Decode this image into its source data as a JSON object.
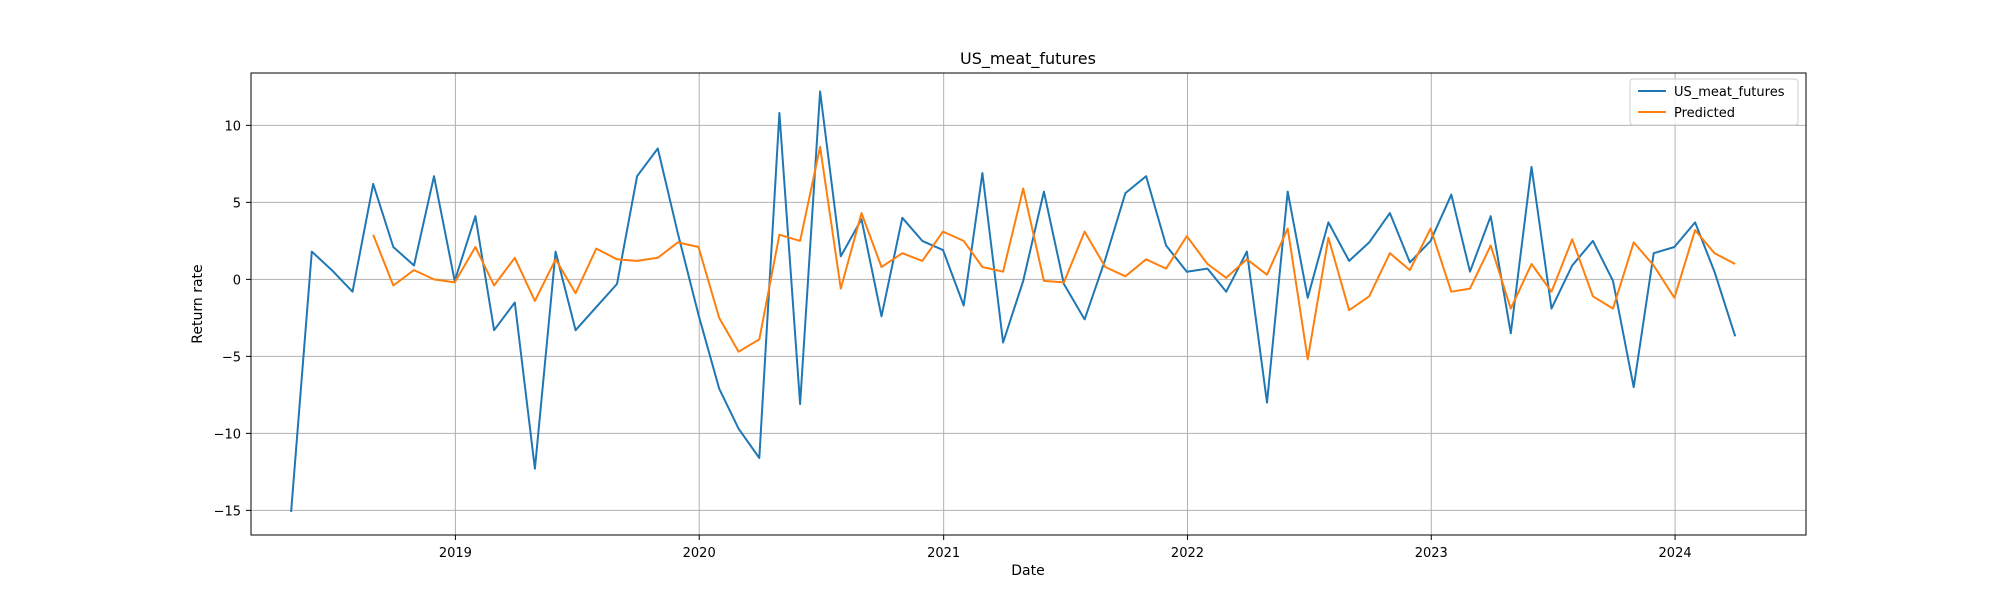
{
  "chart_data": {
    "type": "line",
    "title": "US_meat_futures",
    "xlabel": "Date",
    "ylabel": "Return rate",
    "xlim": [
      "2018-03-01",
      "2024-07-15"
    ],
    "ylim": [
      -16.6,
      13.4
    ],
    "yticks": [
      -15,
      -10,
      -5,
      0,
      5,
      10
    ],
    "ytick_labels": [
      "−15",
      "−10",
      "−5",
      "0",
      "5",
      "10"
    ],
    "xticks": [
      "2019-01-01",
      "2020-01-01",
      "2021-01-01",
      "2022-01-01",
      "2023-01-01",
      "2024-01-01"
    ],
    "xtick_labels": [
      "2019",
      "2020",
      "2021",
      "2022",
      "2023",
      "2024"
    ],
    "grid": true,
    "legend_position": "top-right",
    "series": [
      {
        "name": "US_meat_futures",
        "color": "#1f77b4",
        "points": [
          [
            "2018-04-30",
            -15.1
          ],
          [
            "2018-05-31",
            1.8
          ],
          [
            "2018-06-30",
            0.6
          ],
          [
            "2018-07-31",
            -0.8
          ],
          [
            "2018-08-31",
            6.2
          ],
          [
            "2018-09-30",
            2.1
          ],
          [
            "2018-10-31",
            0.9
          ],
          [
            "2018-11-30",
            6.7
          ],
          [
            "2018-12-31",
            -0.1
          ],
          [
            "2019-01-31",
            4.1
          ],
          [
            "2019-02-28",
            -3.3
          ],
          [
            "2019-03-31",
            -1.5
          ],
          [
            "2019-04-30",
            -12.3
          ],
          [
            "2019-05-31",
            1.8
          ],
          [
            "2019-06-30",
            -3.3
          ],
          [
            "2019-07-31",
            -1.8
          ],
          [
            "2019-08-31",
            -0.3
          ],
          [
            "2019-09-30",
            6.7
          ],
          [
            "2019-10-31",
            8.5
          ],
          [
            "2019-11-30",
            3.0
          ],
          [
            "2019-12-31",
            -2.3
          ],
          [
            "2020-01-31",
            -7.1
          ],
          [
            "2020-02-29",
            -9.7
          ],
          [
            "2020-03-31",
            -11.6
          ],
          [
            "2020-04-30",
            10.8
          ],
          [
            "2020-05-31",
            -8.1
          ],
          [
            "2020-06-30",
            12.2
          ],
          [
            "2020-07-31",
            1.5
          ],
          [
            "2020-08-31",
            3.9
          ],
          [
            "2020-09-30",
            -2.4
          ],
          [
            "2020-10-31",
            4.0
          ],
          [
            "2020-11-30",
            2.5
          ],
          [
            "2020-12-31",
            1.9
          ],
          [
            "2021-01-31",
            -1.7
          ],
          [
            "2021-02-28",
            6.9
          ],
          [
            "2021-03-31",
            -4.1
          ],
          [
            "2021-04-30",
            -0.1
          ],
          [
            "2021-05-31",
            5.7
          ],
          [
            "2021-06-30",
            -0.3
          ],
          [
            "2021-07-31",
            -2.6
          ],
          [
            "2021-08-31",
            1.3
          ],
          [
            "2021-09-30",
            5.6
          ],
          [
            "2021-10-31",
            6.7
          ],
          [
            "2021-11-30",
            2.2
          ],
          [
            "2021-12-31",
            0.5
          ],
          [
            "2022-01-31",
            0.7
          ],
          [
            "2022-02-28",
            -0.8
          ],
          [
            "2022-03-31",
            1.8
          ],
          [
            "2022-04-30",
            -8.0
          ],
          [
            "2022-05-31",
            5.7
          ],
          [
            "2022-06-30",
            -1.2
          ],
          [
            "2022-07-31",
            3.7
          ],
          [
            "2022-08-31",
            1.2
          ],
          [
            "2022-09-30",
            2.4
          ],
          [
            "2022-10-31",
            4.3
          ],
          [
            "2022-11-30",
            1.1
          ],
          [
            "2022-12-31",
            2.5
          ],
          [
            "2023-01-31",
            5.5
          ],
          [
            "2023-02-28",
            0.5
          ],
          [
            "2023-03-31",
            4.1
          ],
          [
            "2023-04-30",
            -3.5
          ],
          [
            "2023-05-31",
            7.3
          ],
          [
            "2023-06-30",
            -1.9
          ],
          [
            "2023-07-31",
            0.9
          ],
          [
            "2023-08-31",
            2.5
          ],
          [
            "2023-09-30",
            -0.1
          ],
          [
            "2023-10-31",
            -7.0
          ],
          [
            "2023-11-30",
            1.7
          ],
          [
            "2023-12-31",
            2.1
          ],
          [
            "2024-01-31",
            3.7
          ],
          [
            "2024-02-29",
            0.5
          ],
          [
            "2024-03-31",
            -3.7
          ]
        ]
      },
      {
        "name": "Predicted",
        "color": "#ff7f0e",
        "points": [
          [
            "2018-08-31",
            2.9
          ],
          [
            "2018-09-30",
            -0.4
          ],
          [
            "2018-10-31",
            0.6
          ],
          [
            "2018-11-30",
            0.0
          ],
          [
            "2018-12-31",
            -0.2
          ],
          [
            "2019-01-31",
            2.1
          ],
          [
            "2019-02-28",
            -0.4
          ],
          [
            "2019-03-31",
            1.4
          ],
          [
            "2019-04-30",
            -1.4
          ],
          [
            "2019-05-31",
            1.3
          ],
          [
            "2019-06-30",
            -0.9
          ],
          [
            "2019-07-31",
            2.0
          ],
          [
            "2019-08-31",
            1.3
          ],
          [
            "2019-09-30",
            1.2
          ],
          [
            "2019-10-31",
            1.4
          ],
          [
            "2019-11-30",
            2.4
          ],
          [
            "2019-12-31",
            2.1
          ],
          [
            "2020-01-31",
            -2.5
          ],
          [
            "2020-02-29",
            -4.7
          ],
          [
            "2020-03-31",
            -3.9
          ],
          [
            "2020-04-30",
            2.9
          ],
          [
            "2020-05-31",
            2.5
          ],
          [
            "2020-06-30",
            8.6
          ],
          [
            "2020-07-31",
            -0.6
          ],
          [
            "2020-08-31",
            4.3
          ],
          [
            "2020-09-30",
            0.8
          ],
          [
            "2020-10-31",
            1.7
          ],
          [
            "2020-11-30",
            1.2
          ],
          [
            "2020-12-31",
            3.1
          ],
          [
            "2021-01-31",
            2.5
          ],
          [
            "2021-02-28",
            0.8
          ],
          [
            "2021-03-31",
            0.5
          ],
          [
            "2021-04-30",
            5.9
          ],
          [
            "2021-05-31",
            -0.1
          ],
          [
            "2021-06-30",
            -0.2
          ],
          [
            "2021-07-31",
            3.1
          ],
          [
            "2021-08-31",
            0.8
          ],
          [
            "2021-09-30",
            0.2
          ],
          [
            "2021-10-31",
            1.3
          ],
          [
            "2021-11-30",
            0.7
          ],
          [
            "2021-12-31",
            2.8
          ],
          [
            "2022-01-31",
            1.0
          ],
          [
            "2022-02-28",
            0.1
          ],
          [
            "2022-03-31",
            1.3
          ],
          [
            "2022-04-30",
            0.3
          ],
          [
            "2022-05-31",
            3.3
          ],
          [
            "2022-06-30",
            -5.2
          ],
          [
            "2022-07-31",
            2.7
          ],
          [
            "2022-08-31",
            -2.0
          ],
          [
            "2022-09-30",
            -1.1
          ],
          [
            "2022-10-31",
            1.7
          ],
          [
            "2022-11-30",
            0.6
          ],
          [
            "2022-12-31",
            3.3
          ],
          [
            "2023-01-31",
            -0.8
          ],
          [
            "2023-02-28",
            -0.6
          ],
          [
            "2023-03-31",
            2.2
          ],
          [
            "2023-04-30",
            -1.9
          ],
          [
            "2023-05-31",
            1.0
          ],
          [
            "2023-06-30",
            -0.8
          ],
          [
            "2023-07-31",
            2.6
          ],
          [
            "2023-08-31",
            -1.1
          ],
          [
            "2023-09-30",
            -1.9
          ],
          [
            "2023-10-31",
            2.4
          ],
          [
            "2023-11-30",
            0.9
          ],
          [
            "2023-12-31",
            -1.2
          ],
          [
            "2024-01-31",
            3.2
          ],
          [
            "2024-02-29",
            1.7
          ],
          [
            "2024-03-31",
            1.0
          ]
        ]
      }
    ]
  }
}
